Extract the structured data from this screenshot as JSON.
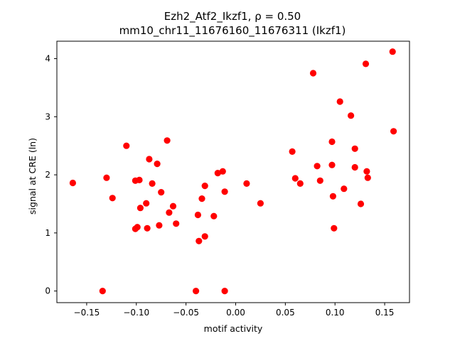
{
  "chart_data": {
    "type": "scatter",
    "title_line1": "Ezh2_Atf2_Ikzf1, ρ = 0.50",
    "title_line2": "mm10_chr11_11676160_11676311 (Ikzf1)",
    "xlabel": "motif activity",
    "ylabel": "signal at CRE (ln)",
    "xlim": [
      -0.18,
      0.175
    ],
    "ylim": [
      -0.2,
      4.3
    ],
    "xticks": [
      -0.15,
      -0.1,
      -0.05,
      0.0,
      0.05,
      0.1,
      0.15
    ],
    "xtick_labels": [
      "−0.15",
      "−0.10",
      "−0.05",
      "0.00",
      "0.05",
      "0.10",
      "0.15"
    ],
    "yticks": [
      0,
      1,
      2,
      3,
      4
    ],
    "ytick_labels": [
      "0",
      "1",
      "2",
      "3",
      "4"
    ],
    "grid": false,
    "color": "#ff0000",
    "points": [
      {
        "x": -0.164,
        "y": 1.86
      },
      {
        "x": -0.134,
        "y": 0.0
      },
      {
        "x": -0.13,
        "y": 1.95
      },
      {
        "x": -0.124,
        "y": 1.6
      },
      {
        "x": -0.11,
        "y": 2.5
      },
      {
        "x": -0.101,
        "y": 1.9
      },
      {
        "x": -0.101,
        "y": 1.07
      },
      {
        "x": -0.099,
        "y": 1.1
      },
      {
        "x": -0.097,
        "y": 1.91
      },
      {
        "x": -0.096,
        "y": 1.43
      },
      {
        "x": -0.09,
        "y": 1.51
      },
      {
        "x": -0.089,
        "y": 1.08
      },
      {
        "x": -0.087,
        "y": 2.27
      },
      {
        "x": -0.084,
        "y": 1.85
      },
      {
        "x": -0.079,
        "y": 2.19
      },
      {
        "x": -0.077,
        "y": 1.13
      },
      {
        "x": -0.075,
        "y": 1.7
      },
      {
        "x": -0.069,
        "y": 2.59
      },
      {
        "x": -0.067,
        "y": 1.35
      },
      {
        "x": -0.063,
        "y": 1.46
      },
      {
        "x": -0.06,
        "y": 1.16
      },
      {
        "x": -0.04,
        "y": 0.0
      },
      {
        "x": -0.038,
        "y": 1.31
      },
      {
        "x": -0.037,
        "y": 0.86
      },
      {
        "x": -0.034,
        "y": 1.59
      },
      {
        "x": -0.031,
        "y": 1.81
      },
      {
        "x": -0.031,
        "y": 0.94
      },
      {
        "x": -0.022,
        "y": 1.29
      },
      {
        "x": -0.018,
        "y": 2.03
      },
      {
        "x": -0.013,
        "y": 2.06
      },
      {
        "x": -0.011,
        "y": 1.71
      },
      {
        "x": -0.011,
        "y": 0.0
      },
      {
        "x": 0.011,
        "y": 1.85
      },
      {
        "x": 0.025,
        "y": 1.51
      },
      {
        "x": 0.057,
        "y": 2.4
      },
      {
        "x": 0.06,
        "y": 1.94
      },
      {
        "x": 0.065,
        "y": 1.85
      },
      {
        "x": 0.078,
        "y": 3.75
      },
      {
        "x": 0.082,
        "y": 2.15
      },
      {
        "x": 0.085,
        "y": 1.9
      },
      {
        "x": 0.097,
        "y": 2.57
      },
      {
        "x": 0.097,
        "y": 2.17
      },
      {
        "x": 0.098,
        "y": 1.63
      },
      {
        "x": 0.099,
        "y": 1.08
      },
      {
        "x": 0.105,
        "y": 3.26
      },
      {
        "x": 0.109,
        "y": 1.76
      },
      {
        "x": 0.116,
        "y": 3.02
      },
      {
        "x": 0.12,
        "y": 2.45
      },
      {
        "x": 0.12,
        "y": 2.13
      },
      {
        "x": 0.126,
        "y": 1.5
      },
      {
        "x": 0.131,
        "y": 3.91
      },
      {
        "x": 0.132,
        "y": 2.06
      },
      {
        "x": 0.133,
        "y": 1.95
      },
      {
        "x": 0.158,
        "y": 4.12
      },
      {
        "x": 0.159,
        "y": 2.75
      }
    ]
  }
}
